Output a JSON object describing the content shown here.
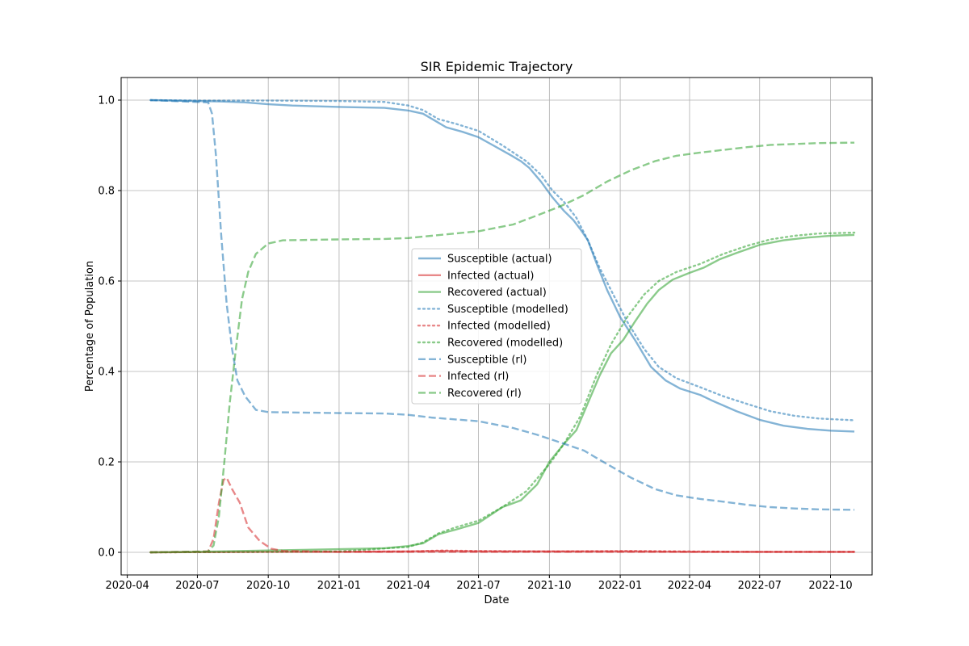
{
  "chart_data": {
    "type": "line",
    "title": "SIR Epidemic Trajectory",
    "xlabel": "Date",
    "ylabel": "Percentage of Population",
    "x_axis": {
      "type": "date",
      "range": [
        "2020-03-24",
        "2022-11-24"
      ],
      "ticks": [
        "2020-04-01",
        "2020-07-01",
        "2020-10-01",
        "2021-01-01",
        "2021-04-01",
        "2021-07-01",
        "2021-10-01",
        "2022-01-01",
        "2022-04-01",
        "2022-07-01",
        "2022-10-01"
      ],
      "tick_labels": [
        "2020-04",
        "2020-07",
        "2020-10",
        "2021-01",
        "2021-04",
        "2021-07",
        "2021-10",
        "2022-01",
        "2022-04",
        "2022-07",
        "2022-10"
      ]
    },
    "y_axis": {
      "range": [
        -0.05,
        1.05
      ],
      "ticks": [
        0.0,
        0.2,
        0.4,
        0.6,
        0.8,
        1.0
      ],
      "tick_labels": [
        "0.0",
        "0.2",
        "0.4",
        "0.6",
        "0.8",
        "1.0"
      ]
    },
    "grid": true,
    "legend_position": "center",
    "series": [
      {
        "name": "Susceptible (actual)",
        "color": "#1f77b4",
        "style": "solid",
        "points": [
          [
            "2020-05-01",
            1.0
          ],
          [
            "2020-07-01",
            0.998
          ],
          [
            "2020-08-01",
            0.997
          ],
          [
            "2020-09-01",
            0.995
          ],
          [
            "2020-10-01",
            0.991
          ],
          [
            "2020-11-01",
            0.988
          ],
          [
            "2021-01-01",
            0.985
          ],
          [
            "2021-03-01",
            0.983
          ],
          [
            "2021-04-01",
            0.977
          ],
          [
            "2021-04-20",
            0.97
          ],
          [
            "2021-05-05",
            0.955
          ],
          [
            "2021-05-20",
            0.94
          ],
          [
            "2021-06-10",
            0.93
          ],
          [
            "2021-07-01",
            0.918
          ],
          [
            "2021-07-20",
            0.9
          ],
          [
            "2021-08-10",
            0.88
          ],
          [
            "2021-08-25",
            0.865
          ],
          [
            "2021-09-05",
            0.85
          ],
          [
            "2021-09-20",
            0.82
          ],
          [
            "2021-10-05",
            0.785
          ],
          [
            "2021-10-20",
            0.755
          ],
          [
            "2021-11-01",
            0.735
          ],
          [
            "2021-11-10",
            0.715
          ],
          [
            "2021-11-20",
            0.69
          ],
          [
            "2021-12-01",
            0.64
          ],
          [
            "2021-12-15",
            0.58
          ],
          [
            "2022-01-01",
            0.52
          ],
          [
            "2022-01-20",
            0.47
          ],
          [
            "2022-02-10",
            0.41
          ],
          [
            "2022-03-01",
            0.38
          ],
          [
            "2022-03-20",
            0.362
          ],
          [
            "2022-04-15",
            0.348
          ],
          [
            "2022-05-01",
            0.335
          ],
          [
            "2022-06-01",
            0.312
          ],
          [
            "2022-07-01",
            0.293
          ],
          [
            "2022-08-01",
            0.28
          ],
          [
            "2022-09-01",
            0.273
          ],
          [
            "2022-10-01",
            0.269
          ],
          [
            "2022-11-01",
            0.267
          ]
        ]
      },
      {
        "name": "Infected (actual)",
        "color": "#d62728",
        "style": "solid",
        "points": [
          [
            "2020-05-01",
            0.0
          ],
          [
            "2020-10-01",
            0.001
          ],
          [
            "2021-01-01",
            0.001
          ],
          [
            "2021-04-01",
            0.002
          ],
          [
            "2021-05-15",
            0.003
          ],
          [
            "2021-07-01",
            0.002
          ],
          [
            "2021-10-01",
            0.002
          ],
          [
            "2022-01-15",
            0.002
          ],
          [
            "2022-04-01",
            0.001
          ],
          [
            "2022-07-01",
            0.001
          ],
          [
            "2022-11-01",
            0.001
          ]
        ]
      },
      {
        "name": "Recovered (actual)",
        "color": "#2ca02c",
        "style": "solid",
        "points": [
          [
            "2020-05-01",
            0.0
          ],
          [
            "2020-07-01",
            0.001
          ],
          [
            "2020-10-01",
            0.004
          ],
          [
            "2021-01-01",
            0.007
          ],
          [
            "2021-03-01",
            0.009
          ],
          [
            "2021-04-01",
            0.014
          ],
          [
            "2021-04-20",
            0.02
          ],
          [
            "2021-05-10",
            0.04
          ],
          [
            "2021-06-01",
            0.05
          ],
          [
            "2021-07-01",
            0.065
          ],
          [
            "2021-08-01",
            0.1
          ],
          [
            "2021-08-25",
            0.115
          ],
          [
            "2021-09-15",
            0.15
          ],
          [
            "2021-10-01",
            0.2
          ],
          [
            "2021-10-20",
            0.24
          ],
          [
            "2021-11-05",
            0.27
          ],
          [
            "2021-11-20",
            0.33
          ],
          [
            "2021-12-05",
            0.39
          ],
          [
            "2021-12-20",
            0.44
          ],
          [
            "2022-01-05",
            0.47
          ],
          [
            "2022-01-20",
            0.51
          ],
          [
            "2022-02-05",
            0.55
          ],
          [
            "2022-02-20",
            0.58
          ],
          [
            "2022-03-10",
            0.603
          ],
          [
            "2022-04-01",
            0.618
          ],
          [
            "2022-04-20",
            0.63
          ],
          [
            "2022-05-10",
            0.648
          ],
          [
            "2022-06-01",
            0.662
          ],
          [
            "2022-07-01",
            0.68
          ],
          [
            "2022-08-01",
            0.69
          ],
          [
            "2022-09-01",
            0.696
          ],
          [
            "2022-10-01",
            0.7
          ],
          [
            "2022-11-01",
            0.702
          ]
        ]
      },
      {
        "name": "Susceptible (modelled)",
        "color": "#1f77b4",
        "style": "dotted",
        "points": [
          [
            "2020-05-01",
            1.0
          ],
          [
            "2020-07-01",
            0.999
          ],
          [
            "2020-10-01",
            0.999
          ],
          [
            "2021-01-01",
            0.998
          ],
          [
            "2021-03-01",
            0.996
          ],
          [
            "2021-04-01",
            0.988
          ],
          [
            "2021-04-20",
            0.978
          ],
          [
            "2021-05-10",
            0.958
          ],
          [
            "2021-06-01",
            0.948
          ],
          [
            "2021-07-01",
            0.932
          ],
          [
            "2021-08-01",
            0.9
          ],
          [
            "2021-09-01",
            0.865
          ],
          [
            "2021-09-20",
            0.835
          ],
          [
            "2021-10-05",
            0.8
          ],
          [
            "2021-10-20",
            0.775
          ],
          [
            "2021-11-05",
            0.74
          ],
          [
            "2021-11-20",
            0.69
          ],
          [
            "2021-12-05",
            0.63
          ],
          [
            "2021-12-20",
            0.58
          ],
          [
            "2022-01-10",
            0.51
          ],
          [
            "2022-02-01",
            0.45
          ],
          [
            "2022-02-20",
            0.41
          ],
          [
            "2022-03-15",
            0.385
          ],
          [
            "2022-04-15",
            0.365
          ],
          [
            "2022-05-15",
            0.345
          ],
          [
            "2022-06-15",
            0.328
          ],
          [
            "2022-07-15",
            0.312
          ],
          [
            "2022-08-15",
            0.302
          ],
          [
            "2022-09-15",
            0.296
          ],
          [
            "2022-11-01",
            0.292
          ]
        ]
      },
      {
        "name": "Infected (modelled)",
        "color": "#d62728",
        "style": "dotted",
        "points": [
          [
            "2020-05-01",
            0.0
          ],
          [
            "2020-10-01",
            0.001
          ],
          [
            "2021-04-01",
            0.002
          ],
          [
            "2021-05-15",
            0.004
          ],
          [
            "2021-07-01",
            0.003
          ],
          [
            "2021-10-01",
            0.002
          ],
          [
            "2022-01-15",
            0.003
          ],
          [
            "2022-04-01",
            0.002
          ],
          [
            "2022-07-01",
            0.001
          ],
          [
            "2022-11-01",
            0.001
          ]
        ]
      },
      {
        "name": "Recovered (modelled)",
        "color": "#2ca02c",
        "style": "dotted",
        "points": [
          [
            "2020-05-01",
            0.0
          ],
          [
            "2020-10-01",
            0.001
          ],
          [
            "2021-01-01",
            0.002
          ],
          [
            "2021-04-01",
            0.012
          ],
          [
            "2021-04-20",
            0.022
          ],
          [
            "2021-05-10",
            0.042
          ],
          [
            "2021-06-01",
            0.055
          ],
          [
            "2021-07-01",
            0.07
          ],
          [
            "2021-08-01",
            0.1
          ],
          [
            "2021-09-01",
            0.135
          ],
          [
            "2021-10-01",
            0.195
          ],
          [
            "2021-10-20",
            0.24
          ],
          [
            "2021-11-10",
            0.3
          ],
          [
            "2021-12-01",
            0.39
          ],
          [
            "2021-12-20",
            0.46
          ],
          [
            "2022-01-10",
            0.52
          ],
          [
            "2022-02-01",
            0.57
          ],
          [
            "2022-02-20",
            0.6
          ],
          [
            "2022-03-15",
            0.62
          ],
          [
            "2022-04-15",
            0.638
          ],
          [
            "2022-05-15",
            0.66
          ],
          [
            "2022-06-15",
            0.678
          ],
          [
            "2022-07-15",
            0.692
          ],
          [
            "2022-08-15",
            0.7
          ],
          [
            "2022-09-15",
            0.705
          ],
          [
            "2022-11-01",
            0.707
          ]
        ]
      },
      {
        "name": "Susceptible (rl)",
        "color": "#1f77b4",
        "style": "dashed",
        "points": [
          [
            "2020-05-01",
            1.0
          ],
          [
            "2020-07-15",
            0.995
          ],
          [
            "2020-07-20",
            0.97
          ],
          [
            "2020-07-25",
            0.88
          ],
          [
            "2020-08-01",
            0.7
          ],
          [
            "2020-08-08",
            0.55
          ],
          [
            "2020-08-15",
            0.45
          ],
          [
            "2020-08-22",
            0.38
          ],
          [
            "2020-09-01",
            0.345
          ],
          [
            "2020-09-15",
            0.315
          ],
          [
            "2020-10-01",
            0.31
          ],
          [
            "2021-01-01",
            0.308
          ],
          [
            "2021-03-01",
            0.307
          ],
          [
            "2021-04-01",
            0.304
          ],
          [
            "2021-05-01",
            0.298
          ],
          [
            "2021-07-01",
            0.29
          ],
          [
            "2021-08-15",
            0.275
          ],
          [
            "2021-09-15",
            0.26
          ],
          [
            "2021-10-15",
            0.243
          ],
          [
            "2021-11-15",
            0.225
          ],
          [
            "2021-12-15",
            0.195
          ],
          [
            "2022-01-15",
            0.165
          ],
          [
            "2022-02-15",
            0.14
          ],
          [
            "2022-03-15",
            0.126
          ],
          [
            "2022-04-15",
            0.118
          ],
          [
            "2022-05-15",
            0.112
          ],
          [
            "2022-06-15",
            0.105
          ],
          [
            "2022-07-15",
            0.1
          ],
          [
            "2022-08-15",
            0.097
          ],
          [
            "2022-09-15",
            0.095
          ],
          [
            "2022-11-01",
            0.094
          ]
        ]
      },
      {
        "name": "Infected (rl)",
        "color": "#d62728",
        "style": "dashed",
        "points": [
          [
            "2020-05-01",
            0.0
          ],
          [
            "2020-07-15",
            0.002
          ],
          [
            "2020-07-22",
            0.03
          ],
          [
            "2020-07-29",
            0.11
          ],
          [
            "2020-08-04",
            0.16
          ],
          [
            "2020-08-08",
            0.165
          ],
          [
            "2020-08-15",
            0.14
          ],
          [
            "2020-08-25",
            0.11
          ],
          [
            "2020-09-05",
            0.055
          ],
          [
            "2020-09-20",
            0.025
          ],
          [
            "2020-10-05",
            0.008
          ],
          [
            "2020-10-20",
            0.003
          ],
          [
            "2021-01-01",
            0.001
          ],
          [
            "2021-07-01",
            0.001
          ],
          [
            "2022-01-01",
            0.001
          ],
          [
            "2022-11-01",
            0.001
          ]
        ]
      },
      {
        "name": "Recovered (rl)",
        "color": "#2ca02c",
        "style": "dashed",
        "points": [
          [
            "2020-05-01",
            0.0
          ],
          [
            "2020-07-15",
            0.002
          ],
          [
            "2020-07-22",
            0.015
          ],
          [
            "2020-07-29",
            0.08
          ],
          [
            "2020-08-05",
            0.2
          ],
          [
            "2020-08-12",
            0.33
          ],
          [
            "2020-08-20",
            0.45
          ],
          [
            "2020-08-28",
            0.56
          ],
          [
            "2020-09-05",
            0.62
          ],
          [
            "2020-09-15",
            0.66
          ],
          [
            "2020-10-01",
            0.683
          ],
          [
            "2020-10-20",
            0.69
          ],
          [
            "2021-01-01",
            0.692
          ],
          [
            "2021-03-01",
            0.693
          ],
          [
            "2021-04-01",
            0.695
          ],
          [
            "2021-05-01",
            0.7
          ],
          [
            "2021-07-01",
            0.71
          ],
          [
            "2021-08-15",
            0.725
          ],
          [
            "2021-09-15",
            0.745
          ],
          [
            "2021-10-15",
            0.765
          ],
          [
            "2021-11-15",
            0.79
          ],
          [
            "2021-12-15",
            0.82
          ],
          [
            "2022-01-15",
            0.845
          ],
          [
            "2022-02-15",
            0.865
          ],
          [
            "2022-03-15",
            0.877
          ],
          [
            "2022-04-15",
            0.884
          ],
          [
            "2022-05-15",
            0.89
          ],
          [
            "2022-06-15",
            0.896
          ],
          [
            "2022-07-15",
            0.901
          ],
          [
            "2022-08-15",
            0.903
          ],
          [
            "2022-09-15",
            0.905
          ],
          [
            "2022-11-01",
            0.906
          ]
        ]
      }
    ]
  }
}
